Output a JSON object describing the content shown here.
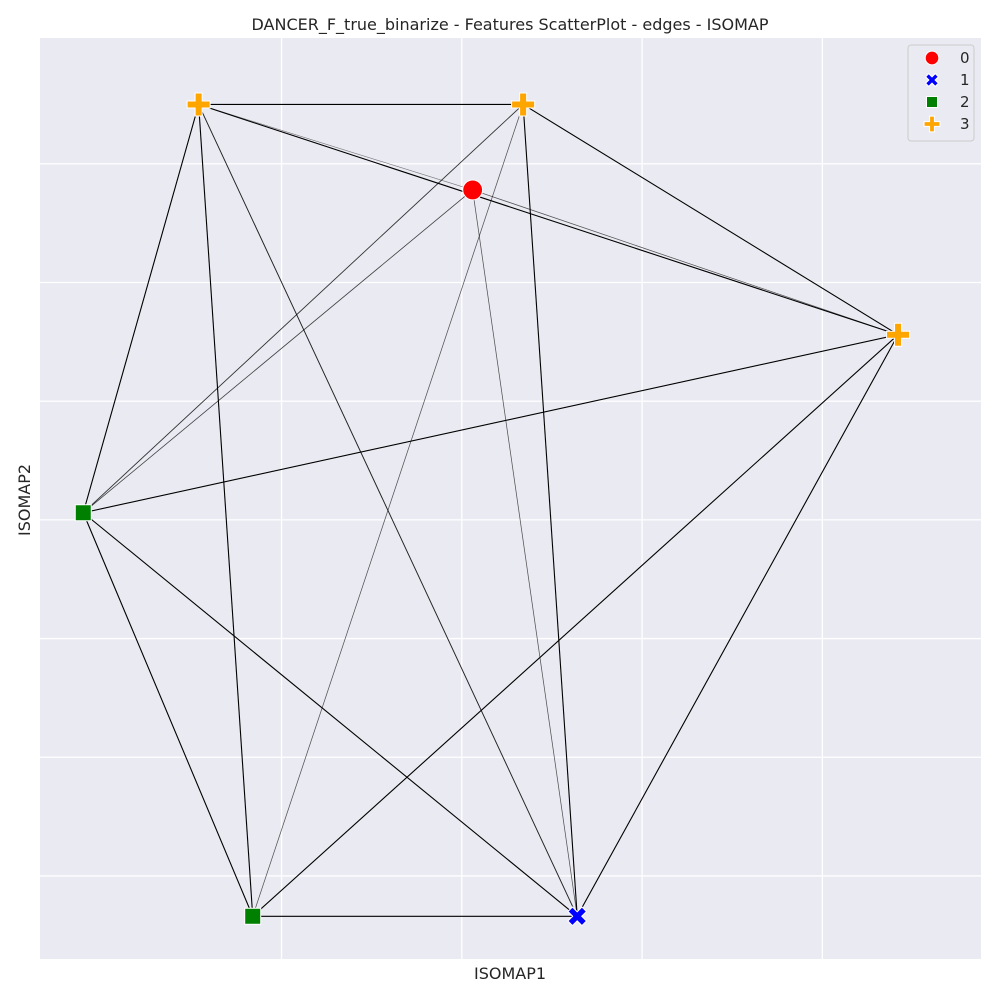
{
  "chart_data": {
    "type": "scatter",
    "title": "DANCER_F_true_binarize - Features ScatterPlot - edges - ISOMAP",
    "xlabel": "ISOMAP1",
    "ylabel": "ISOMAP2",
    "xlim": [
      -1.17,
      1.44
    ],
    "ylim": [
      -1.85,
      2.03
    ],
    "x_gridlines": [
      -0.5,
      0.0,
      0.5,
      1.0
    ],
    "y_gridlines": [
      -1.5,
      -1.0,
      -0.5,
      0.0,
      0.5,
      1.0,
      1.5
    ],
    "grid": true,
    "legend_position": "top-right",
    "legend": [
      {
        "label": "0",
        "color": "#ff0000",
        "marker": "circle"
      },
      {
        "label": "1",
        "color": "#0000ff",
        "marker": "x"
      },
      {
        "label": "2",
        "color": "#008000",
        "marker": "square"
      },
      {
        "label": "3",
        "color": "#ffa500",
        "marker": "plus"
      }
    ],
    "nodes": [
      {
        "id": "n0",
        "class": "0",
        "x": 0.03,
        "y": 1.39
      },
      {
        "id": "n1",
        "class": "1",
        "x": 0.32,
        "y": -1.67
      },
      {
        "id": "n2",
        "class": "2",
        "x": -1.05,
        "y": 0.03
      },
      {
        "id": "n3",
        "class": "2",
        "x": -0.58,
        "y": -1.67
      },
      {
        "id": "n4",
        "class": "3",
        "x": -0.73,
        "y": 1.75
      },
      {
        "id": "n5",
        "class": "3",
        "x": 0.17,
        "y": 1.75
      },
      {
        "id": "n6",
        "class": "3",
        "x": 1.21,
        "y": 0.78
      }
    ],
    "edges": [
      {
        "source": "n4",
        "target": "n5",
        "weight": 1.0
      },
      {
        "source": "n4",
        "target": "n2",
        "weight": 1.0
      },
      {
        "source": "n4",
        "target": "n3",
        "weight": 1.0
      },
      {
        "source": "n4",
        "target": "n1",
        "weight": 0.8
      },
      {
        "source": "n4",
        "target": "n6",
        "weight": 1.0
      },
      {
        "source": "n4",
        "target": "n0",
        "weight": 0.3
      },
      {
        "source": "n5",
        "target": "n6",
        "weight": 1.0
      },
      {
        "source": "n5",
        "target": "n1",
        "weight": 1.0
      },
      {
        "source": "n5",
        "target": "n2",
        "weight": 0.7
      },
      {
        "source": "n5",
        "target": "n3",
        "weight": 0.5
      },
      {
        "source": "n0",
        "target": "n6",
        "weight": 0.5
      },
      {
        "source": "n0",
        "target": "n2",
        "weight": 0.6
      },
      {
        "source": "n0",
        "target": "n1",
        "weight": 0.5
      },
      {
        "source": "n6",
        "target": "n2",
        "weight": 1.0
      },
      {
        "source": "n6",
        "target": "n3",
        "weight": 1.0
      },
      {
        "source": "n6",
        "target": "n1",
        "weight": 1.0
      },
      {
        "source": "n2",
        "target": "n3",
        "weight": 1.0
      },
      {
        "source": "n2",
        "target": "n1",
        "weight": 1.0
      },
      {
        "source": "n3",
        "target": "n1",
        "weight": 1.0
      }
    ]
  }
}
